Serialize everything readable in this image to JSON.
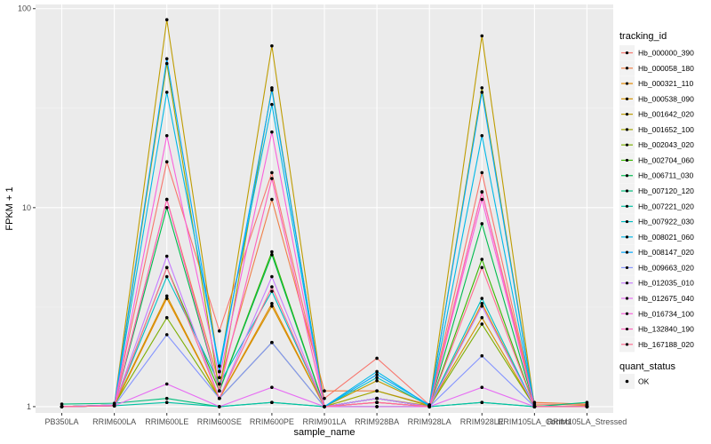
{
  "chart_data": {
    "type": "line",
    "title": "",
    "xlabel": "sample_name",
    "ylabel": "FPKM + 1",
    "y_scale": "log10",
    "ylim": [
      0.93,
      105
    ],
    "y_ticks": [
      1,
      10,
      100
    ],
    "y_tick_labels": [
      "1",
      "10",
      "100"
    ],
    "grid": true,
    "legend_position": "right",
    "categories": [
      "PB350LA",
      "RRIM600LA",
      "RRIM600LE",
      "RRIM600SE",
      "RRIM600PE",
      "RRIM901LA",
      "RRIM928BA",
      "RRIM928LA",
      "RRIM928LE",
      "RRIM105LA_Control",
      "RRIM105LA_Stressed"
    ],
    "legend_title": "tracking_id",
    "quant_status_title": "quant_status",
    "quant_status_label": "OK",
    "series": [
      {
        "name": "Hb_000000_390",
        "color": "#F8766D",
        "values": [
          1.0,
          1.02,
          17.0,
          2.4,
          15.0,
          1.1,
          1.75,
          1.02,
          15.0,
          1.03,
          1.02
        ]
      },
      {
        "name": "Hb_000058_180",
        "color": "#EF7F47",
        "values": [
          1.0,
          1.02,
          11.0,
          1.3,
          11.0,
          1.2,
          1.2,
          1.02,
          12.0,
          1.05,
          1.03
        ]
      },
      {
        "name": "Hb_000321_110",
        "color": "#E38900",
        "values": [
          1.0,
          1.01,
          3.5,
          1.1,
          3.3,
          1.0,
          1.1,
          1.0,
          3.3,
          1.0,
          1.0
        ]
      },
      {
        "name": "Hb_000538_090",
        "color": "#D39200",
        "values": [
          1.0,
          1.02,
          3.6,
          1.1,
          3.2,
          1.0,
          1.1,
          1.01,
          2.8,
          1.0,
          1.0
        ]
      },
      {
        "name": "Hb_001642_020",
        "color": "#BE9C00",
        "values": [
          1.0,
          1.02,
          88.0,
          1.5,
          65.0,
          1.0,
          1.35,
          1.02,
          73.0,
          1.0,
          1.01
        ]
      },
      {
        "name": "Hb_001652_100",
        "color": "#A3A500",
        "values": [
          1.0,
          1.01,
          53.0,
          1.2,
          40.0,
          1.0,
          1.2,
          1.01,
          40.0,
          1.01,
          1.0
        ]
      },
      {
        "name": "Hb_002043_020",
        "color": "#7CAE00",
        "values": [
          1.0,
          1.02,
          2.8,
          1.1,
          2.1,
          1.0,
          1.05,
          1.0,
          2.6,
          1.0,
          1.0
        ]
      },
      {
        "name": "Hb_002704_060",
        "color": "#39B600",
        "values": [
          1.0,
          1.01,
          5.0,
          1.2,
          6.0,
          1.0,
          1.1,
          1.0,
          5.5,
          1.0,
          1.0
        ]
      },
      {
        "name": "Hb_006711_030",
        "color": "#00BB4E",
        "values": [
          1.0,
          1.01,
          10.0,
          1.2,
          5.8,
          1.0,
          1.1,
          1.0,
          8.3,
          1.0,
          1.0
        ]
      },
      {
        "name": "Hb_007120_120",
        "color": "#00BF7D",
        "values": [
          1.03,
          1.04,
          1.1,
          1.0,
          1.05,
          1.0,
          1.0,
          1.0,
          1.05,
          1.0,
          1.05
        ]
      },
      {
        "name": "Hb_007221_020",
        "color": "#00C1A3",
        "values": [
          1.0,
          1.01,
          1.05,
          1.0,
          1.05,
          1.0,
          1.0,
          1.0,
          1.05,
          1.0,
          1.0
        ]
      },
      {
        "name": "Hb_007922_030",
        "color": "#00BFC4",
        "values": [
          1.0,
          1.02,
          4.5,
          1.3,
          3.8,
          1.0,
          1.4,
          1.01,
          3.5,
          1.0,
          1.0
        ]
      },
      {
        "name": "Hb_008021_060",
        "color": "#00B8E7",
        "values": [
          1.0,
          1.01,
          38.0,
          1.6,
          33.0,
          1.0,
          1.5,
          1.01,
          23.0,
          1.0,
          1.0
        ]
      },
      {
        "name": "Hb_008147_020",
        "color": "#00A9FF",
        "values": [
          1.0,
          1.02,
          56.0,
          1.5,
          39.0,
          1.0,
          1.45,
          1.02,
          38.0,
          1.0,
          1.0
        ]
      },
      {
        "name": "Hb_009663_020",
        "color": "#8494FF",
        "values": [
          1.0,
          1.01,
          2.3,
          1.1,
          2.1,
          1.0,
          1.1,
          1.0,
          1.8,
          1.0,
          1.0
        ]
      },
      {
        "name": "Hb_012035_010",
        "color": "#C77CFF",
        "values": [
          1.0,
          1.02,
          5.7,
          1.1,
          4.5,
          1.0,
          1.1,
          1.0,
          3.2,
          1.0,
          1.0
        ]
      },
      {
        "name": "Hb_012675_040",
        "color": "#E76BF3",
        "values": [
          1.0,
          1.01,
          1.3,
          1.0,
          1.25,
          1.0,
          1.0,
          1.0,
          1.25,
          1.0,
          1.0
        ]
      },
      {
        "name": "Hb_016734_100",
        "color": "#FA62DB",
        "values": [
          1.0,
          1.01,
          23.0,
          1.4,
          24.0,
          1.0,
          1.05,
          1.0,
          11.0,
          1.0,
          1.0
        ]
      },
      {
        "name": "Hb_132840_190",
        "color": "#FF62BC",
        "values": [
          1.0,
          1.01,
          11.0,
          1.2,
          14.0,
          1.0,
          1.05,
          1.0,
          12.0,
          1.0,
          1.0
        ]
      },
      {
        "name": "Hb_167188_020",
        "color": "#FF6C91",
        "values": [
          1.0,
          1.01,
          5.0,
          1.1,
          4.0,
          1.0,
          1.05,
          1.0,
          5.0,
          1.0,
          1.0
        ]
      }
    ]
  }
}
